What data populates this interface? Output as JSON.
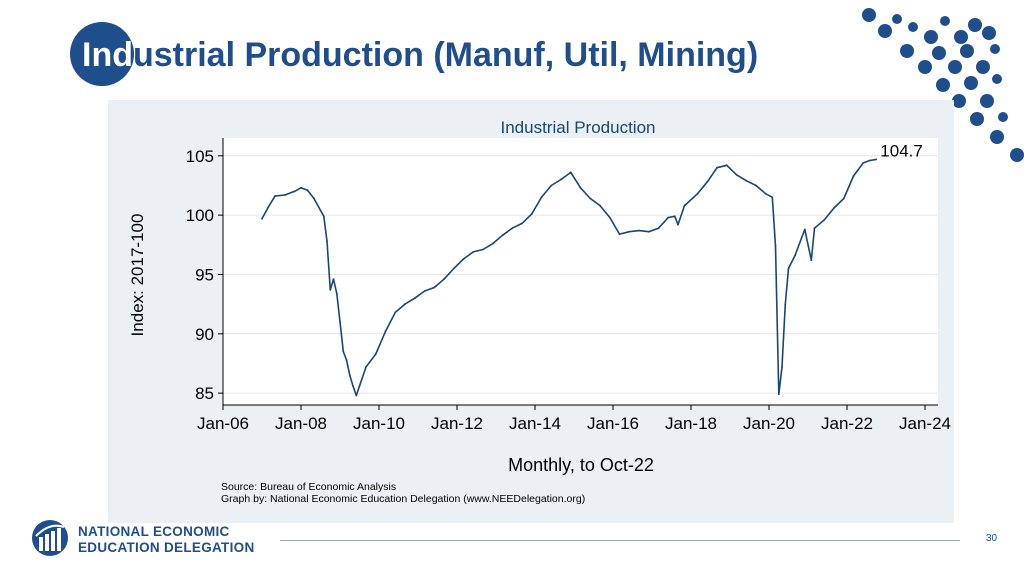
{
  "slide": {
    "title_inverse": "Ind",
    "title_rest": "ustrial Production (Manuf, Util, Mining)",
    "page_number": "30",
    "logo_line1": "NATIONAL ECONOMIC",
    "logo_line2": "EDUCATION DELEGATION",
    "accent_color": "#1f4e8c"
  },
  "chart_data": {
    "type": "line",
    "title": "Industrial Production",
    "xlabel": "Monthly, to Oct-22",
    "ylabel": "Index: 2017-100",
    "ylim": [
      84,
      106.5
    ],
    "yticks": [
      85,
      90,
      95,
      100,
      105
    ],
    "xlim": [
      "2006-01",
      "2024-05"
    ],
    "xticks": [
      "Jan-06",
      "Jan-08",
      "Jan-10",
      "Jan-12",
      "Jan-14",
      "Jan-16",
      "Jan-18",
      "Jan-20",
      "Jan-22",
      "Jan-24"
    ],
    "grid": true,
    "line_color": "#1a476f",
    "end_label": "104.7",
    "source": "Source: Bureau of Economic Analysis",
    "credit": "Graph by: National Economic Education Delegation (www.NEEDelegation.org)",
    "series": [
      {
        "points": [
          [
            "2007-01",
            99.7
          ],
          [
            "2007-03",
            100.7
          ],
          [
            "2007-05",
            101.6
          ],
          [
            "2007-08",
            101.7
          ],
          [
            "2007-11",
            102.0
          ],
          [
            "2008-01",
            102.3
          ],
          [
            "2008-03",
            102.1
          ],
          [
            "2008-05",
            101.4
          ],
          [
            "2008-07",
            100.4
          ],
          [
            "2008-08",
            99.9
          ],
          [
            "2008-09",
            97.8
          ],
          [
            "2008-10",
            93.7
          ],
          [
            "2008-11",
            94.6
          ],
          [
            "2008-12",
            93.4
          ],
          [
            "2009-01",
            91.0
          ],
          [
            "2009-02",
            88.5
          ],
          [
            "2009-03",
            87.8
          ],
          [
            "2009-04",
            86.5
          ],
          [
            "2009-05",
            85.6
          ],
          [
            "2009-06",
            84.8
          ],
          [
            "2009-07",
            85.6
          ],
          [
            "2009-09",
            87.2
          ],
          [
            "2009-12",
            88.3
          ],
          [
            "2010-03",
            90.2
          ],
          [
            "2010-06",
            91.8
          ],
          [
            "2010-09",
            92.5
          ],
          [
            "2010-12",
            93.0
          ],
          [
            "2011-03",
            93.6
          ],
          [
            "2011-06",
            93.9
          ],
          [
            "2011-09",
            94.6
          ],
          [
            "2011-12",
            95.5
          ],
          [
            "2012-03",
            96.3
          ],
          [
            "2012-06",
            96.9
          ],
          [
            "2012-09",
            97.1
          ],
          [
            "2012-12",
            97.6
          ],
          [
            "2013-03",
            98.3
          ],
          [
            "2013-06",
            98.9
          ],
          [
            "2013-09",
            99.3
          ],
          [
            "2013-12",
            100.1
          ],
          [
            "2014-03",
            101.5
          ],
          [
            "2014-06",
            102.5
          ],
          [
            "2014-09",
            103.0
          ],
          [
            "2014-12",
            103.6
          ],
          [
            "2015-03",
            102.3
          ],
          [
            "2015-06",
            101.4
          ],
          [
            "2015-09",
            100.8
          ],
          [
            "2015-12",
            99.8
          ],
          [
            "2016-03",
            98.4
          ],
          [
            "2016-06",
            98.6
          ],
          [
            "2016-09",
            98.7
          ],
          [
            "2016-12",
            98.6
          ],
          [
            "2017-03",
            98.9
          ],
          [
            "2017-06",
            99.8
          ],
          [
            "2017-08",
            99.9
          ],
          [
            "2017-09",
            99.2
          ],
          [
            "2017-11",
            100.8
          ],
          [
            "2018-03",
            101.8
          ],
          [
            "2018-06",
            102.8
          ],
          [
            "2018-09",
            104.0
          ],
          [
            "2018-12",
            104.2
          ],
          [
            "2019-03",
            103.4
          ],
          [
            "2019-06",
            102.9
          ],
          [
            "2019-09",
            102.5
          ],
          [
            "2019-12",
            101.8
          ],
          [
            "2020-02",
            101.5
          ],
          [
            "2020-03",
            97.4
          ],
          [
            "2020-04",
            84.9
          ],
          [
            "2020-05",
            87.2
          ],
          [
            "2020-06",
            92.5
          ],
          [
            "2020-07",
            95.5
          ],
          [
            "2020-09",
            96.6
          ],
          [
            "2020-12",
            98.8
          ],
          [
            "2021-02",
            96.2
          ],
          [
            "2021-03",
            98.9
          ],
          [
            "2021-06",
            99.6
          ],
          [
            "2021-09",
            100.6
          ],
          [
            "2021-12",
            101.4
          ],
          [
            "2022-03",
            103.3
          ],
          [
            "2022-06",
            104.4
          ],
          [
            "2022-08",
            104.6
          ],
          [
            "2022-10",
            104.7
          ]
        ]
      }
    ]
  }
}
